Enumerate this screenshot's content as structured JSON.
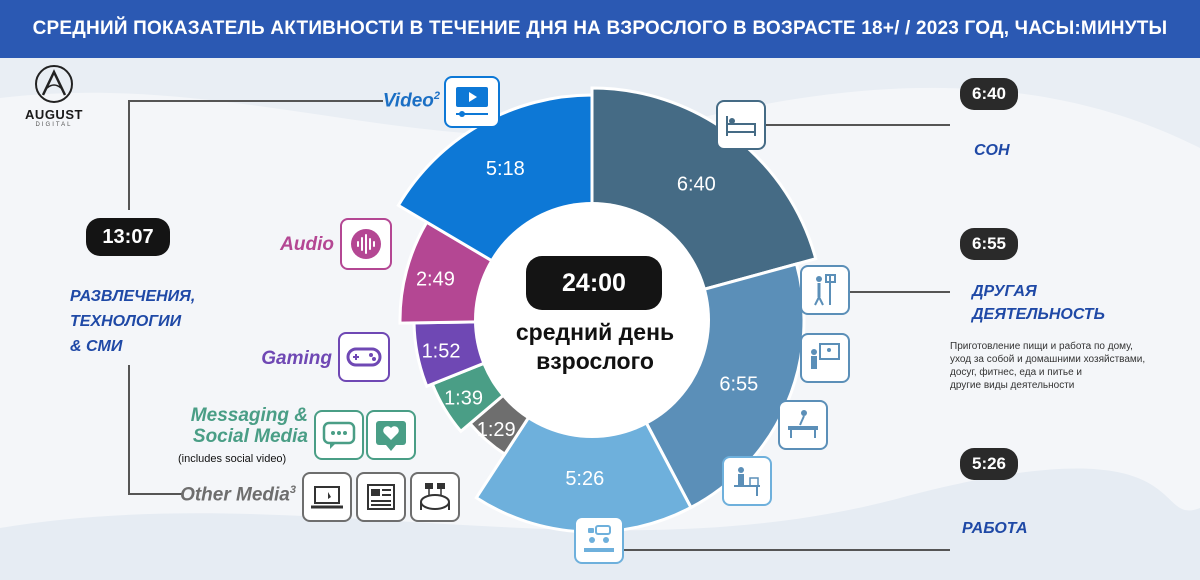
{
  "page": {
    "title": "СРЕДНИЙ ПОКАЗАТЕЛЬ АКТИВНОСТИ В ТЕЧЕНИЕ ДНЯ НА ВЗРОСЛОГО В ВОЗРАСТЕ 18+/ / 2023 ГОД, ЧАСЫ:МИНУТЫ",
    "logo_text": "AUGUST",
    "logo_sub": "DIGITAL"
  },
  "center": {
    "total": "24:00",
    "caption_line1": "средний день",
    "caption_line2": "взрослого"
  },
  "left_group": {
    "total": "13:07",
    "label_line1": "РАЗВЛЕЧЕНИЯ,",
    "label_line2": "ТЕХНОЛОГИИ",
    "label_line3": "& СМИ"
  },
  "media_labels": {
    "video": "Video",
    "video_sup": "2",
    "audio": "Audio",
    "gaming": "Gaming",
    "messaging_line1": "Messaging &",
    "messaging_line2": "Social Media",
    "messaging_note": "(includes social video)",
    "other": "Other Media",
    "other_sup": "3"
  },
  "right_groups": {
    "sleep_value": "6:40",
    "sleep_label": "СОН",
    "other_value": "6:55",
    "other_label_line1": "ДРУГАЯ",
    "other_label_line2": "ДЕЯТЕЛЬНОСТЬ",
    "other_desc_line1": "Приготовление пищи и работа по дому,",
    "other_desc_line2": "уход за собой и домашними хозяйствами,",
    "other_desc_line3": "досуг, фитнес, еда и питье и",
    "other_desc_line4": "другие виды деятельности",
    "work_value": "5:26",
    "work_label": "РАБОТА"
  },
  "chart_data": {
    "type": "pie",
    "title": "СРЕДНИЙ ПОКАЗАТЕЛЬ АКТИВНОСТИ В ТЕЧЕНИЕ ДНЯ НА ВЗРОСЛОГО В ВОЗРАСТЕ 18+/ / 2023 ГОД, ЧАСЫ:МИНУТЫ",
    "unit": "hours:minutes",
    "slices": [
      {
        "name": "СОН",
        "label": "6:40",
        "minutes": 400,
        "color": "#456b85"
      },
      {
        "name": "ДРУГАЯ ДЕЯТЕЛЬНОСТЬ",
        "label": "6:55",
        "minutes": 415,
        "color": "#5b8fb8"
      },
      {
        "name": "РАБОТА",
        "label": "5:26",
        "minutes": 326,
        "color": "#6eb0dc"
      },
      {
        "name": "Other Media",
        "label": "1:29",
        "minutes": 89,
        "color": "#6e6e6e"
      },
      {
        "name": "Messaging & Social Media",
        "label": "1:39",
        "minutes": 99,
        "color": "#4a9e86"
      },
      {
        "name": "Gaming",
        "label": "1:52",
        "minutes": 112,
        "color": "#6f48b4"
      },
      {
        "name": "Audio",
        "label": "2:49",
        "minutes": 169,
        "color": "#b44793"
      },
      {
        "name": "Video",
        "label": "5:18",
        "minutes": 318,
        "color": "#0d78d6"
      }
    ],
    "total_label": "24:00"
  },
  "icons": {
    "sleep": "bed-icon",
    "other1": "painting-person-icon",
    "other2": "presentation-person-icon",
    "other3": "massage-table-icon",
    "other4": "desk-person-icon",
    "work": "meeting-icon",
    "video": "play-video-icon",
    "audio": "audio-wave-icon",
    "gaming": "gamepad-icon",
    "messaging": "chat-bubble-icon",
    "social": "heart-bubble-icon",
    "other_media1": "laptop-icon",
    "other_media2": "newspaper-icon",
    "other_media3": "stadium-icon"
  }
}
